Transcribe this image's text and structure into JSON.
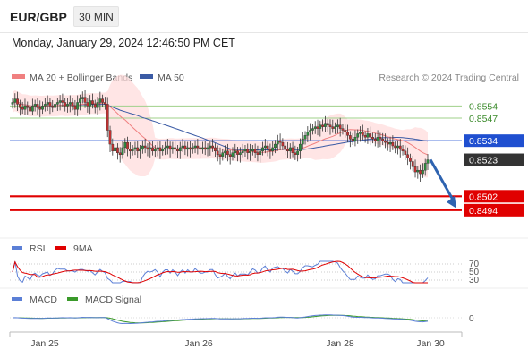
{
  "header": {
    "symbol": "EUR/GBP",
    "timeframe": "30 MIN",
    "datetime": "Monday, January 29, 2024 12:46:50 PM CET"
  },
  "legend": {
    "ma20_label": "MA 20 + Bollinger Bands",
    "ma50_label": "MA 50",
    "credit": "Research © 2024 Trading Central"
  },
  "colors": {
    "ma20": "#f08080",
    "bollinger_fill": "#ffdcdc",
    "ma50": "#3b5ba5",
    "candle_up": "#2e8b3e",
    "candle_down": "#c03030",
    "green_level": "#9fd08a",
    "blue_level": "#1f4fd0",
    "red_level": "#e00000",
    "arrow": "#2e63b0",
    "rsi": "#5b7fd6",
    "rsi_9ma": "#e00000",
    "macd": "#5b7fd6",
    "macd_signal": "#3a9a2a"
  },
  "rsi_panel": {
    "rsi_label": "RSI",
    "ma_label": "9MA",
    "ticks": [
      "70",
      "50",
      "30"
    ]
  },
  "macd_panel": {
    "macd_label": "MACD",
    "signal_label": "MACD Signal",
    "ticks": [
      "0"
    ]
  },
  "x_axis": {
    "labels": [
      "Jan 25",
      "Jan 26",
      "Jan 28",
      "Jan 30"
    ]
  },
  "chart_data": {
    "type": "candlestick",
    "instrument": "EUR/GBP",
    "interval": "30 MIN",
    "y_range": [
      0.848,
      0.8565
    ],
    "levels": [
      {
        "value": 0.8554,
        "label": "0.8554",
        "kind": "resistance"
      },
      {
        "value": 0.8547,
        "label": "0.8547",
        "kind": "resistance"
      },
      {
        "value": 0.8534,
        "label": "0.8534",
        "kind": "pivot"
      },
      {
        "value": 0.8523,
        "label": "0.8523",
        "kind": "last"
      },
      {
        "value": 0.8502,
        "label": "0.8502",
        "kind": "support"
      },
      {
        "value": 0.8494,
        "label": "0.8494",
        "kind": "support"
      }
    ],
    "closes": [
      0.8556,
      0.8558,
      0.8555,
      0.8553,
      0.8552,
      0.8554,
      0.8553,
      0.8551,
      0.8554,
      0.8555,
      0.8553,
      0.8552,
      0.8554,
      0.8555,
      0.8556,
      0.8554,
      0.8553,
      0.8555,
      0.8556,
      0.8557,
      0.8556,
      0.8554,
      0.8555,
      0.8556,
      0.8554,
      0.8552,
      0.8556,
      0.8558,
      0.8559,
      0.8556,
      0.8554,
      0.8557,
      0.8555,
      0.8553,
      0.8556,
      0.8558,
      0.8556,
      0.8555,
      0.854,
      0.8532,
      0.8528,
      0.853,
      0.8527,
      0.8526,
      0.853,
      0.8533,
      0.8529,
      0.8528,
      0.8529,
      0.853,
      0.8528,
      0.8529,
      0.8531,
      0.853,
      0.8529,
      0.853,
      0.8528,
      0.8529,
      0.853,
      0.8528,
      0.8529,
      0.853,
      0.8531,
      0.8529,
      0.853,
      0.8529,
      0.8528,
      0.853,
      0.8531,
      0.8529,
      0.853,
      0.8529,
      0.853,
      0.8531,
      0.853,
      0.8529,
      0.853,
      0.8529,
      0.853,
      0.8531,
      0.853,
      0.8528,
      0.8526,
      0.8525,
      0.8527,
      0.8528,
      0.8526,
      0.8525,
      0.8527,
      0.8528,
      0.8526,
      0.8527,
      0.8528,
      0.8529,
      0.8527,
      0.8528,
      0.8529,
      0.8527,
      0.8526,
      0.8528,
      0.853,
      0.8531,
      0.8529,
      0.8528,
      0.853,
      0.8532,
      0.8534,
      0.8533,
      0.8531,
      0.8529,
      0.8528,
      0.853,
      0.8527,
      0.8526,
      0.8528,
      0.8532,
      0.8535,
      0.8537,
      0.8539,
      0.854,
      0.8541,
      0.8542,
      0.8541,
      0.8543,
      0.8542,
      0.8544,
      0.8543,
      0.8542,
      0.8541,
      0.8542,
      0.8543,
      0.8541,
      0.854,
      0.8539,
      0.8537,
      0.8535,
      0.8534,
      0.8536,
      0.8538,
      0.8539,
      0.8537,
      0.8536,
      0.8538,
      0.8536,
      0.8535,
      0.8534,
      0.8536,
      0.8535,
      0.8534,
      0.8533,
      0.8532,
      0.8533,
      0.8531,
      0.853,
      0.8531,
      0.8529,
      0.8528,
      0.8526,
      0.8524,
      0.8522,
      0.8519,
      0.8516,
      0.8517,
      0.8515,
      0.8517,
      0.8521,
      0.8523
    ],
    "forecast_target": 0.8494
  }
}
